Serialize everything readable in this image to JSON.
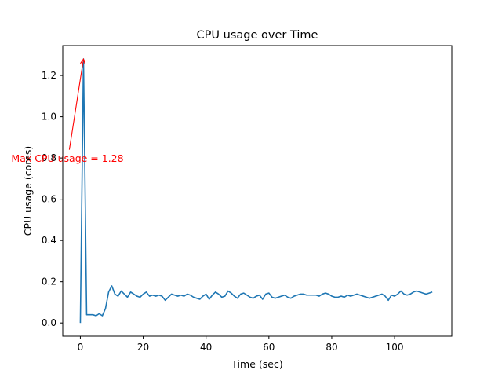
{
  "chart_data": {
    "type": "line",
    "title": "CPU usage over Time",
    "xlabel": "Time (sec)",
    "ylabel": "CPU usage (cores)",
    "xlim": [
      -5.6,
      118.2
    ],
    "ylim": [
      -0.064,
      1.345
    ],
    "xticks": [
      0,
      20,
      40,
      60,
      80,
      100
    ],
    "yticks": [
      0.0,
      0.2,
      0.4,
      0.6,
      0.8,
      1.0,
      1.2
    ],
    "grid": false,
    "series_color": "#1f77b4",
    "annotation_color": "#ff0000",
    "series": [
      {
        "x": [
          0,
          1,
          2,
          3,
          4,
          5,
          6,
          7,
          8,
          9,
          10,
          11,
          12,
          13,
          14,
          15,
          16,
          17,
          18,
          19,
          20,
          21,
          22,
          23,
          24,
          25,
          26,
          27,
          28,
          29,
          30,
          31,
          32,
          33,
          34,
          35,
          36,
          37,
          38,
          39,
          40,
          41,
          42,
          43,
          44,
          45,
          46,
          47,
          48,
          49,
          50,
          51,
          52,
          53,
          54,
          55,
          56,
          57,
          58,
          59,
          60,
          61,
          62,
          63,
          64,
          65,
          66,
          67,
          68,
          69,
          70,
          71,
          72,
          73,
          74,
          75,
          76,
          77,
          78,
          79,
          80,
          81,
          82,
          83,
          84,
          85,
          86,
          87,
          88,
          89,
          90,
          91,
          92,
          93,
          94,
          95,
          96,
          97,
          98,
          99,
          100,
          101,
          102,
          103,
          104,
          105,
          106,
          107,
          108,
          109,
          110,
          111,
          112
        ],
        "values": [
          0.0,
          1.28,
          0.04,
          0.04,
          0.04,
          0.035,
          0.045,
          0.035,
          0.07,
          0.15,
          0.18,
          0.14,
          0.13,
          0.155,
          0.14,
          0.125,
          0.15,
          0.14,
          0.13,
          0.125,
          0.14,
          0.15,
          0.13,
          0.135,
          0.13,
          0.135,
          0.13,
          0.11,
          0.125,
          0.14,
          0.135,
          0.13,
          0.135,
          0.13,
          0.14,
          0.135,
          0.125,
          0.12,
          0.115,
          0.13,
          0.14,
          0.115,
          0.135,
          0.15,
          0.14,
          0.125,
          0.13,
          0.155,
          0.145,
          0.13,
          0.12,
          0.14,
          0.145,
          0.135,
          0.125,
          0.12,
          0.13,
          0.135,
          0.115,
          0.14,
          0.145,
          0.125,
          0.12,
          0.125,
          0.13,
          0.135,
          0.125,
          0.12,
          0.13,
          0.135,
          0.14,
          0.14,
          0.135,
          0.135,
          0.135,
          0.135,
          0.13,
          0.14,
          0.145,
          0.14,
          0.13,
          0.125,
          0.125,
          0.13,
          0.125,
          0.135,
          0.13,
          0.135,
          0.14,
          0.135,
          0.13,
          0.125,
          0.12,
          0.125,
          0.13,
          0.135,
          0.14,
          0.13,
          0.11,
          0.135,
          0.13,
          0.14,
          0.155,
          0.14,
          0.135,
          0.14,
          0.15,
          0.155,
          0.15,
          0.145,
          0.14,
          0.145,
          0.15
        ]
      }
    ],
    "annotations": [
      {
        "text": "Max CPU usage = 1.28",
        "arrow_to": [
          1,
          1.28
        ],
        "text_anchor_point": [
          -3.5,
          0.84
        ]
      }
    ]
  }
}
